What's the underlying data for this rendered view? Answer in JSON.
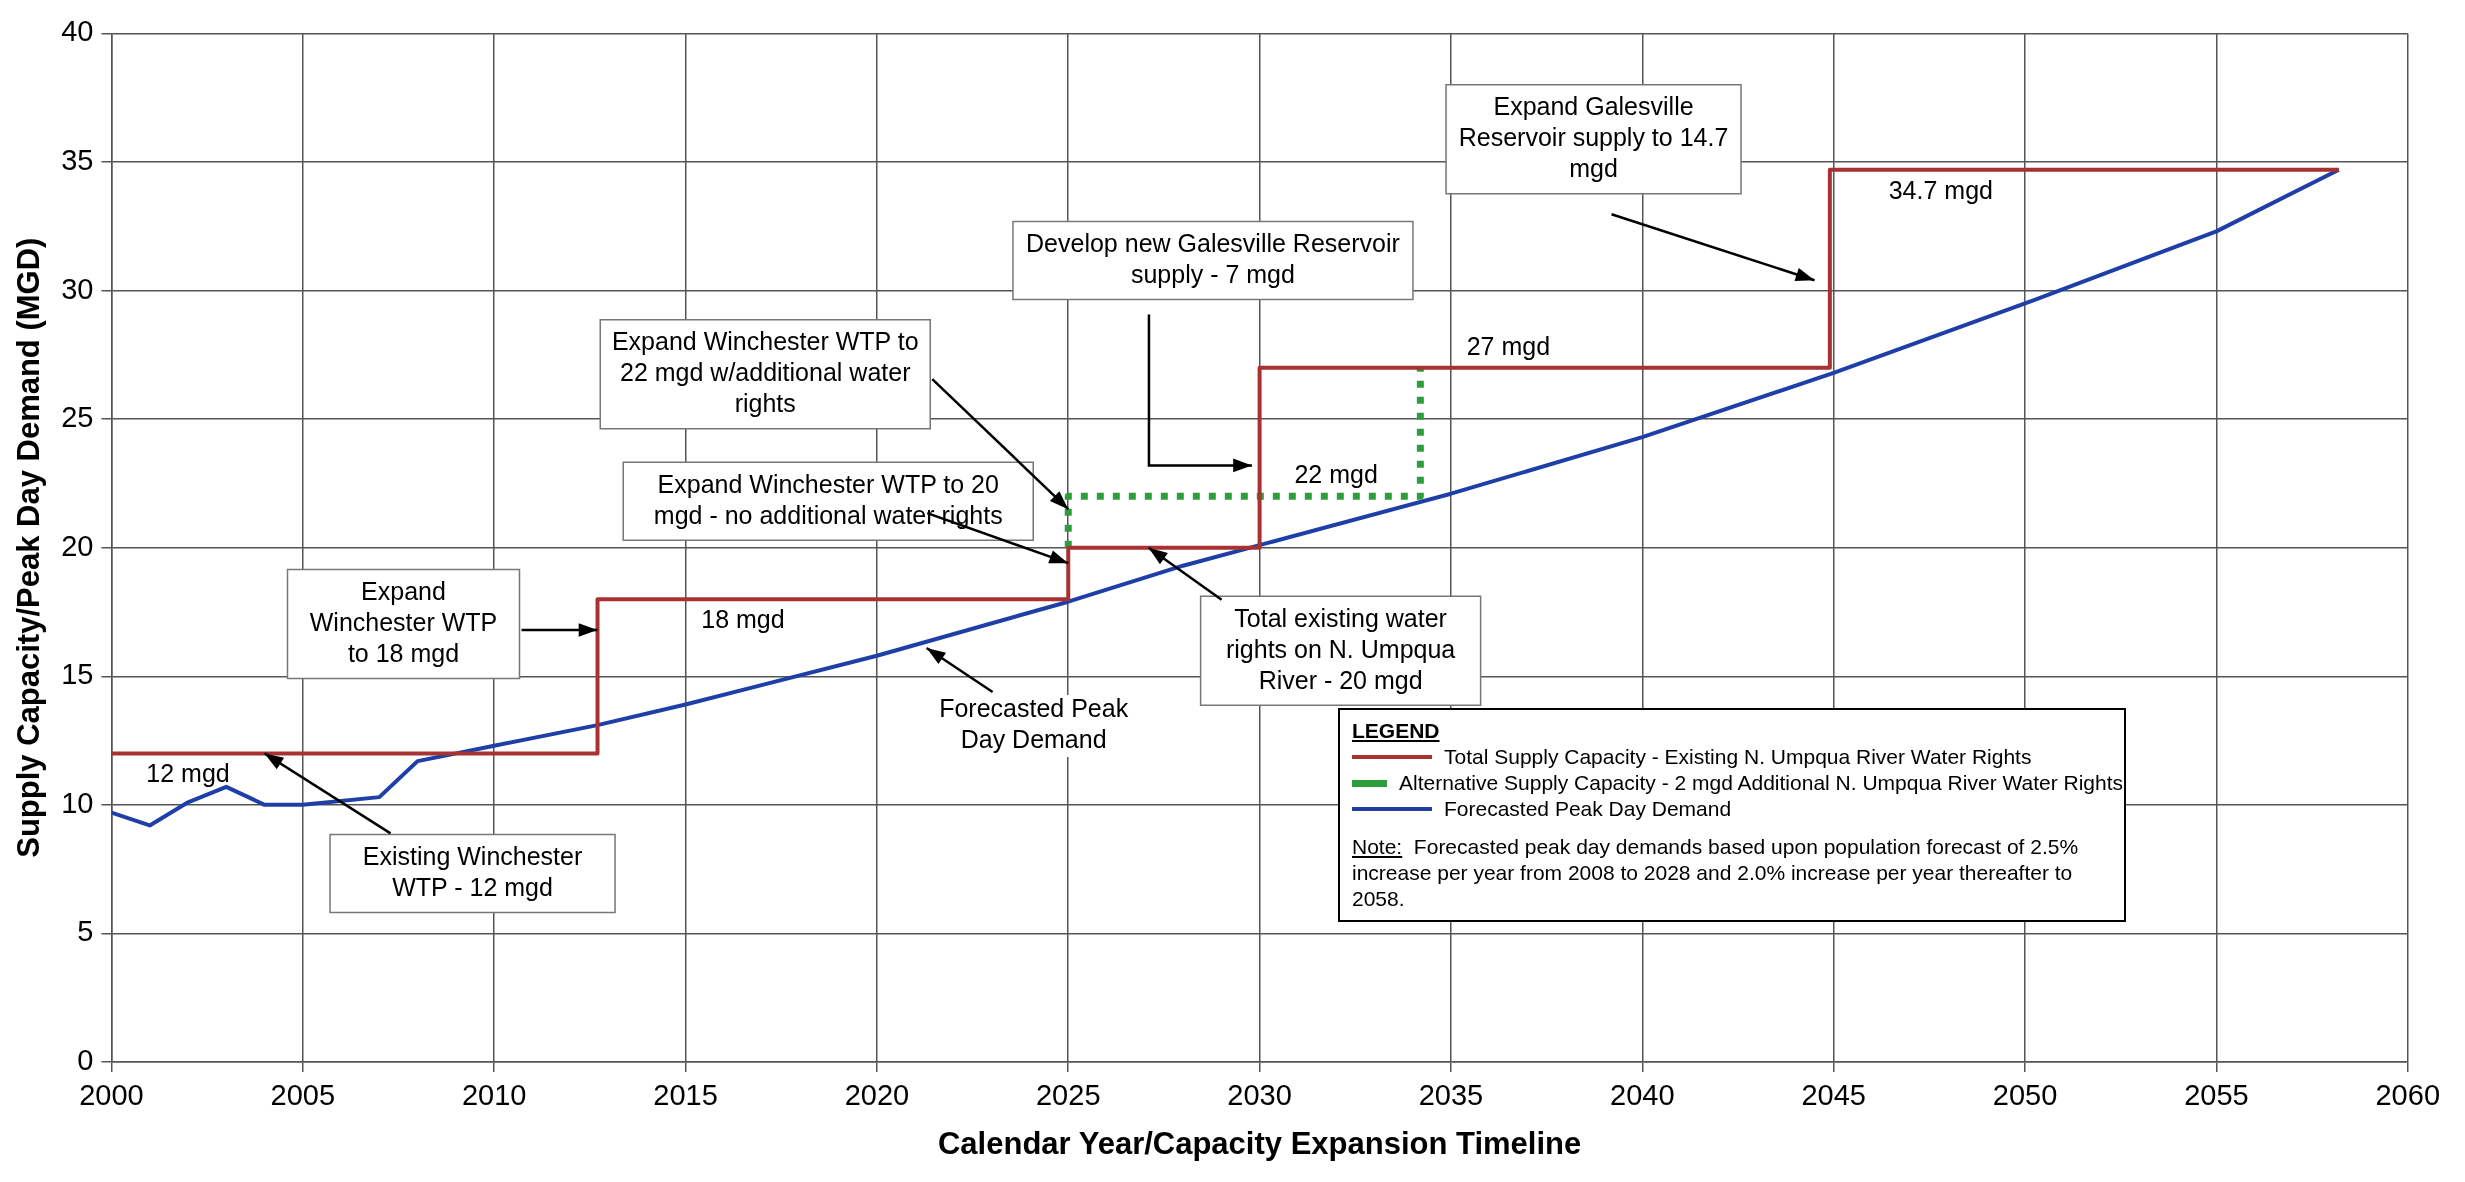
{
  "chart_data": {
    "type": "line",
    "xlabel": "Calendar Year/Capacity Expansion Timeline",
    "ylabel": "Supply Capacity/Peak Day Demand (MGD)",
    "legend_title": "LEGEND",
    "legend": "bottom right",
    "grid": true,
    "marker": "none",
    "xlim": [
      2000,
      2060
    ],
    "xticks": [
      2000,
      2005,
      2010,
      2015,
      2020,
      2025,
      2030,
      2035,
      2040,
      2045,
      2050,
      2055,
      2060
    ],
    "ylim": [
      0,
      40
    ],
    "yticks": [
      0,
      5,
      10,
      15,
      20,
      25,
      30,
      35,
      40
    ],
    "series": [
      {
        "name": "Total Supply Capacity - Existing N. Umpqua River Water Rights",
        "type": "step",
        "color": "#a83232",
        "line_style": "solid",
        "x": [
          2000,
          2012.7,
          2025,
          2030,
          2044.9,
          2058.2
        ],
        "values": [
          12,
          18,
          20,
          27,
          34.7,
          34.7
        ]
      },
      {
        "name": "Alternative Supply Capacity - 2 mgd Additional N. Umpqua River Water Rights",
        "type": "step",
        "color": "#2e9e3a",
        "line_style": "dotted",
        "x": [
          2025,
          2025,
          2034.2
        ],
        "values": [
          20,
          22,
          27
        ]
      },
      {
        "name": "Forecasted Peak Day Demand",
        "color": "#1f3fa8",
        "line_style": "solid",
        "x": [
          2000,
          2001,
          2002,
          2003,
          2004,
          2005,
          2007,
          2008,
          2010,
          2012.7,
          2015,
          2020,
          2025,
          2028,
          2030,
          2035,
          2040,
          2045,
          2050,
          2055,
          2058.2
        ],
        "values": [
          9.7,
          9.2,
          10.1,
          10.7,
          10.0,
          10.0,
          10.3,
          11.7,
          12.3,
          13.1,
          13.9,
          15.8,
          17.9,
          19.3,
          20.1,
          22.1,
          24.3,
          26.8,
          29.5,
          32.3,
          34.7
        ]
      }
    ],
    "annotations": [
      "12 mgd",
      {
        "text": "Existing Winchester WTP - 12 mgd",
        "x": 2004,
        "y": 12
      },
      {
        "text": "Expand Winchester WTP to 18 mgd",
        "x": 2012.7,
        "y": 16.8
      },
      "18 mgd",
      "Forecasted Peak Day Demand",
      {
        "text": "Expand Winchester WTP to 20 mgd - no additional water rights",
        "x": 2025,
        "y": 19.4
      },
      {
        "text": "Expand Winchester WTP to 22 mgd w/additional water rights",
        "x": 2025,
        "y": 21.5
      },
      "Develop new Galesville Reservoir supply - 7 mgd",
      "22 mgd",
      {
        "text": "Total existing water rights on N. Umpqua River - 20 mgd",
        "x": 2027.1,
        "y": 20
      },
      "27 mgd",
      "Expand Galesville Reservoir supply to 14.7 mgd",
      "34.7 mgd",
      "Note:  Forecasted peak day demands based upon population forecast of 2.5% increase per year from 2008 to 2028 and 2.0% increase per year thereafter to 2058."
    ]
  }
}
